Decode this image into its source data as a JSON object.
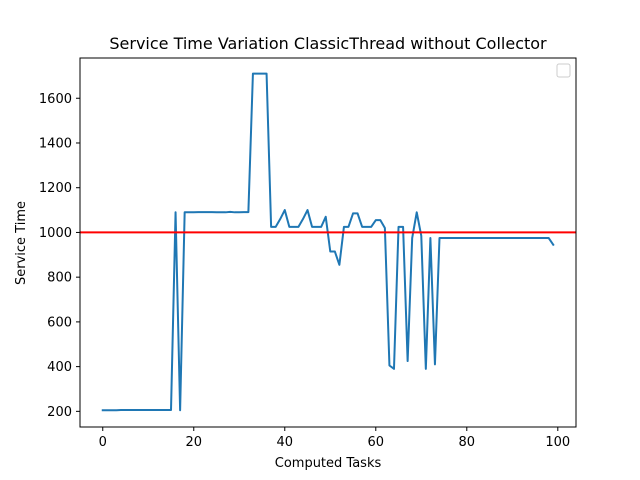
{
  "chart_data": {
    "type": "line",
    "title": "Service Time Variation ClassicThread without Collector",
    "xlabel": "Computed Tasks",
    "ylabel": "Service Time",
    "xlim": [
      -5,
      104
    ],
    "ylim": [
      130,
      1780
    ],
    "x_ticks": [
      0,
      20,
      40,
      60,
      80,
      100
    ],
    "y_ticks": [
      200,
      400,
      600,
      800,
      1000,
      1200,
      1400,
      1600
    ],
    "grid": false,
    "legend": {
      "placement": "top-right",
      "entries": []
    },
    "threshold": {
      "y": 1000,
      "color": "#ff0000"
    },
    "series": [
      {
        "color": "#1f77b4",
        "x": [
          0,
          1,
          2,
          3,
          4,
          5,
          6,
          7,
          8,
          9,
          10,
          11,
          12,
          13,
          14,
          15,
          16,
          17,
          18,
          19,
          20,
          21,
          22,
          23,
          24,
          25,
          26,
          27,
          28,
          29,
          30,
          31,
          32,
          33,
          34,
          35,
          36,
          37,
          38,
          39,
          40,
          41,
          42,
          43,
          44,
          45,
          46,
          47,
          48,
          49,
          50,
          51,
          52,
          53,
          54,
          55,
          56,
          57,
          58,
          59,
          60,
          61,
          62,
          63,
          64,
          65,
          66,
          67,
          68,
          69,
          70,
          71,
          72,
          73,
          74,
          75,
          76,
          77,
          78,
          79,
          80,
          81,
          82,
          83,
          84,
          85,
          86,
          87,
          88,
          89,
          90,
          91,
          92,
          93,
          94,
          95,
          96,
          97,
          98,
          99
        ],
        "y": [
          205,
          205,
          205,
          205,
          206,
          206,
          206,
          206,
          206,
          206,
          206,
          206,
          206,
          206,
          206,
          206,
          1090,
          205,
          1090,
          1090,
          1090,
          1091,
          1091,
          1091,
          1091,
          1090,
          1090,
          1090,
          1092,
          1090,
          1090,
          1091,
          1091,
          1710,
          1710,
          1710,
          1710,
          1025,
          1025,
          1060,
          1100,
          1025,
          1025,
          1025,
          1060,
          1100,
          1025,
          1025,
          1025,
          1070,
          915,
          915,
          855,
          1025,
          1025,
          1085,
          1085,
          1025,
          1025,
          1025,
          1055,
          1055,
          1020,
          405,
          390,
          1025,
          1025,
          425,
          975,
          1090,
          985,
          390,
          975,
          410,
          975,
          975,
          975,
          975,
          975,
          975,
          975,
          975,
          975,
          975,
          975,
          975,
          975,
          975,
          975,
          975,
          975,
          975,
          975,
          975,
          975,
          975,
          975,
          975,
          975,
          945
        ]
      }
    ]
  }
}
